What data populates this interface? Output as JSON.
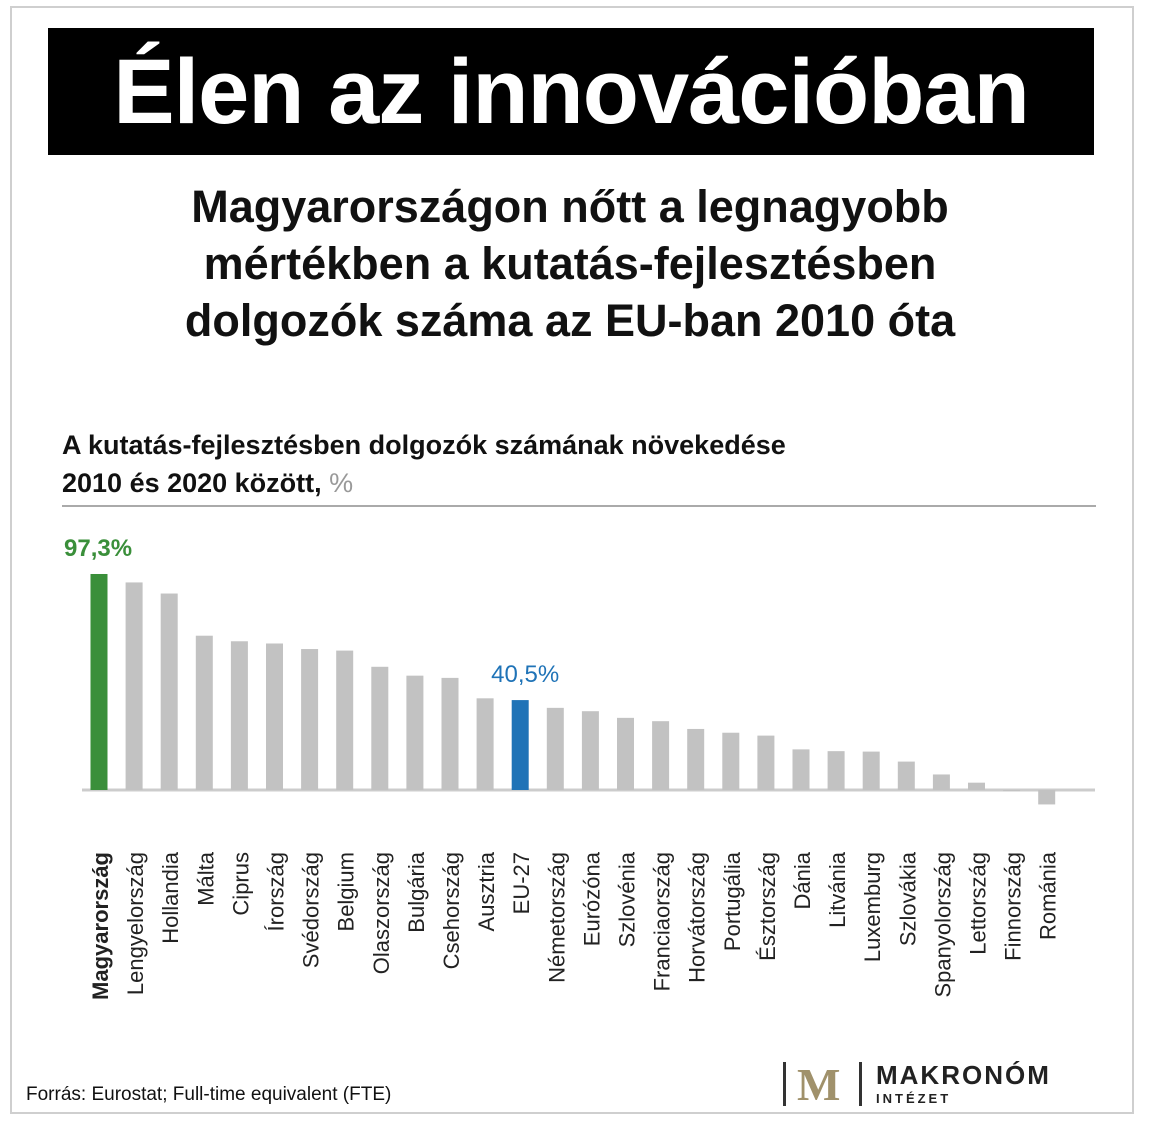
{
  "title": "Élen az innovációban",
  "subtitle_lines": [
    "Magyarországon nőtt a legnagyobb",
    "mértékben a kutatás-fejlesztésben",
    "dolgozók száma az EU-ban 2010 óta"
  ],
  "chart_heading": {
    "line1": "A kutatás-fejlesztésben dolgozók számának növekedése",
    "line2": "2010 és 2020 között,",
    "unit": "%"
  },
  "source": "Forrás: Eurostat; Full-time equivalent (FTE)",
  "logo": {
    "mark": "M",
    "name": "MAKRONÓM",
    "sub": "INTÉZET"
  },
  "colors": {
    "highlight_hu": "#3a8f3a",
    "highlight_eu": "#1f73b7",
    "bar": "#c2c2c2"
  },
  "chart_data": {
    "type": "bar",
    "categories": [
      "Magyarország",
      "Lengyelország",
      "Hollandia",
      "Málta",
      "Ciprus",
      "Írország",
      "Svédország",
      "Belgium",
      "Olaszország",
      "Bulgária",
      "Csehország",
      "Ausztria",
      "EU-27",
      "Németország",
      "Eurózóna",
      "Szlovénia",
      "Franciaország",
      "Horvátország",
      "Portugália",
      "Észtország",
      "Dánia",
      "Litvánia",
      "Luxemburg",
      "Szlovákia",
      "Spanyolország",
      "Lettország",
      "Finnország",
      "Románia"
    ],
    "values": [
      97.3,
      93.5,
      88.5,
      69.5,
      67.0,
      66.0,
      63.5,
      62.8,
      55.5,
      51.5,
      50.5,
      41.3,
      40.5,
      37.0,
      35.5,
      32.5,
      31.0,
      27.5,
      25.8,
      24.5,
      18.3,
      17.5,
      17.3,
      12.8,
      7.0,
      3.3,
      -0.5,
      -6.5
    ],
    "data_labels": [
      {
        "index": 0,
        "text": "97,3%"
      },
      {
        "index": 12,
        "text": "40,5%"
      }
    ],
    "highlight": {
      "0": "highlight_hu",
      "12": "highlight_eu"
    },
    "bold_categories": [
      0
    ],
    "ylim": [
      -10,
      100
    ],
    "grid": false,
    "legend": "none"
  }
}
